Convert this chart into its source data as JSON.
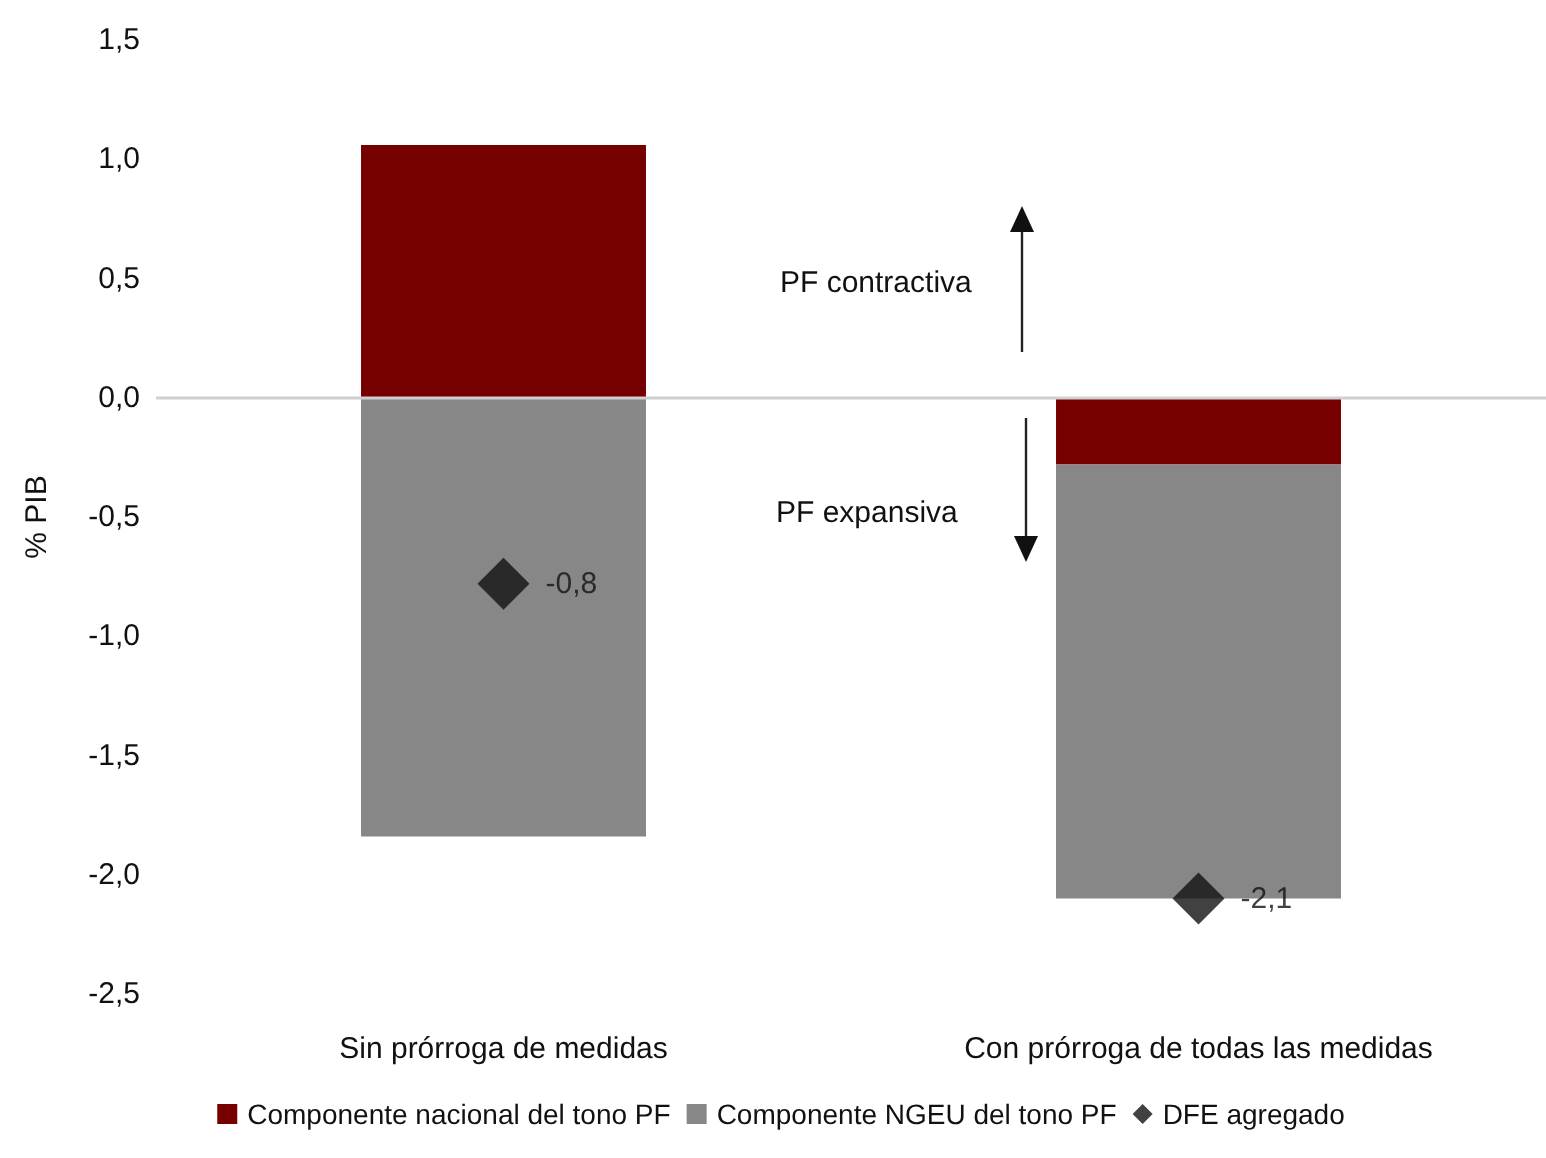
{
  "chart_data": {
    "type": "bar",
    "stacked": true,
    "ylabel": "% PIB",
    "categories": [
      "Sin prórroga de medidas",
      "Con prórroga de todas las medidas"
    ],
    "series": [
      {
        "name": "Componente nacional del tono PF",
        "color": "#760000",
        "values": [
          1.06,
          -0.28
        ]
      },
      {
        "name": "Componente NGEU del tono PF",
        "color": "#878787",
        "values": [
          -1.84,
          -1.82
        ]
      },
      {
        "name": "DFE agregado",
        "type": "scatter",
        "marker": "diamond",
        "color": "#111111",
        "x": [
          "Sin prórroga de medidas",
          "Con prórroga de todas las medidas"
        ],
        "values": [
          -0.78,
          -2.1
        ],
        "value_labels": [
          "-0,8",
          "-2,1"
        ]
      }
    ],
    "ylim": [
      -2.5,
      1.5
    ],
    "yticks": [
      {
        "value": -2.5,
        "label": "-2,5"
      },
      {
        "value": -2,
        "label": "-2,0"
      },
      {
        "value": -1.5,
        "label": "-1,5"
      },
      {
        "value": -1,
        "label": "-1,0"
      },
      {
        "value": -0.5,
        "label": "-0,5"
      },
      {
        "value": 0,
        "label": "0,0"
      },
      {
        "value": 0.5,
        "label": "0,5"
      },
      {
        "value": 1,
        "label": "1,0"
      },
      {
        "value": 1.5,
        "label": "1,5"
      }
    ],
    "annotations": [
      "PF contractiva",
      "PF expansiva"
    ],
    "ref_lines": [
      {
        "axis": "y",
        "value": 0,
        "color": "#d0d0d0"
      }
    ],
    "grid": false,
    "legend": "bottom"
  }
}
